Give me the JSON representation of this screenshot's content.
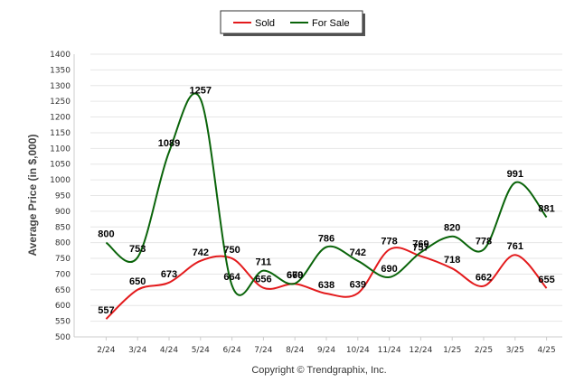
{
  "chart_data": {
    "type": "line",
    "categories": [
      "2/24",
      "3/24",
      "4/24",
      "5/24",
      "6/24",
      "7/24",
      "8/24",
      "9/24",
      "10/24",
      "11/24",
      "12/24",
      "1/25",
      "2/25",
      "3/25",
      "4/25"
    ],
    "series": [
      {
        "name": "Sold",
        "color": "#e31a1c",
        "values": [
          557,
          650,
          673,
          742,
          750,
          656,
          669,
          638,
          639,
          778,
          757,
          718,
          662,
          761,
          655
        ]
      },
      {
        "name": "For Sale",
        "color": "#0a640a",
        "values": [
          800,
          753,
          1089,
          1257,
          664,
          711,
          670,
          786,
          742,
          690,
          769,
          820,
          778,
          991,
          881
        ]
      }
    ],
    "ylabel": "Average Price (in $,000)",
    "ylim": [
      500,
      1400
    ],
    "yticks": [
      500,
      550,
      600,
      650,
      700,
      750,
      800,
      850,
      900,
      950,
      1000,
      1050,
      1100,
      1150,
      1200,
      1250,
      1300,
      1350,
      1400
    ],
    "grid": true,
    "legend_position": "top-center",
    "copyright": "Copyright © Trendgraphix, Inc."
  }
}
